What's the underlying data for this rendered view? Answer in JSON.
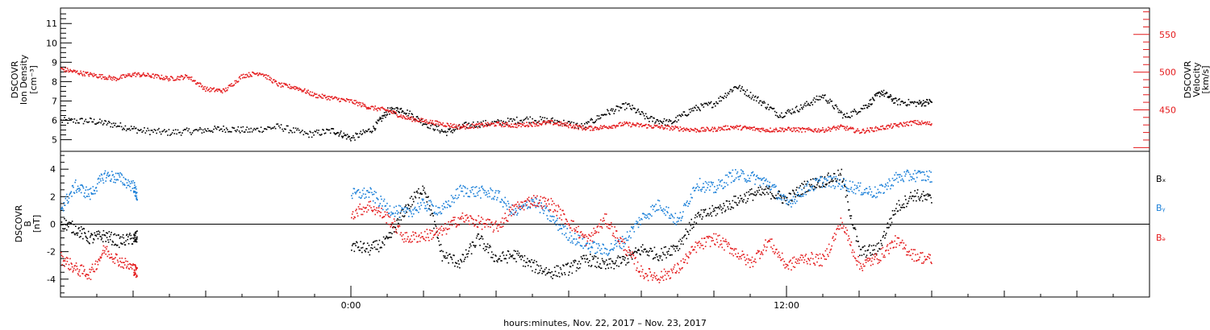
{
  "xlabel": "hours:minutes, Nov. 22, 2017 – Nov. 23, 2017",
  "colors": {
    "axis": "#000000",
    "velocity": "#e41a1c",
    "by": "#1a7fd8",
    "bz": "#e41a1c",
    "bx": "#000000"
  },
  "chart_data": [
    {
      "type": "scatter",
      "panel": "top",
      "xlim": [
        -8,
        22
      ],
      "x_ticks": [
        {
          "v": 0,
          "label": "0:00"
        },
        {
          "v": 12,
          "label": "12:00"
        }
      ],
      "left_axis": {
        "ylabel_lines": [
          "DSCOVR",
          "Ion Density",
          "[cm⁻³]"
        ],
        "ylim": [
          4.4,
          11.8
        ],
        "ticks": [
          5,
          6,
          7,
          8,
          9,
          10,
          11
        ]
      },
      "right_axis": {
        "ylabel_lines": [
          "DSCOVR",
          "Velocity",
          "[km/s]"
        ],
        "ylim": [
          395,
          585
        ],
        "ticks": [
          450,
          500,
          550
        ]
      },
      "series": [
        {
          "key": "density",
          "color": "black",
          "axis": "left",
          "x": [
            -8.0,
            -7.2,
            -6.5,
            -5.8,
            -5.0,
            -4.2,
            -3.5,
            -2.8,
            -2.0,
            -1.2,
            -0.5,
            0.0,
            0.6,
            1.0,
            1.4,
            2.0,
            2.6,
            3.2,
            4.0,
            4.8,
            5.6,
            6.4,
            7.0,
            7.6,
            8.2,
            8.8,
            9.4,
            10.0,
            10.6,
            11.2,
            11.8,
            12.4,
            13.0,
            13.6,
            14.2,
            14.6,
            15.0,
            15.6,
            16.0
          ],
          "y": [
            6.0,
            6.0,
            5.8,
            5.5,
            5.4,
            5.5,
            5.6,
            5.5,
            5.7,
            5.3,
            5.5,
            5.1,
            5.6,
            6.5,
            6.6,
            5.9,
            5.4,
            5.8,
            5.9,
            6.1,
            6.0,
            5.7,
            6.4,
            6.8,
            6.1,
            5.9,
            6.6,
            6.9,
            7.8,
            7.1,
            6.3,
            6.7,
            7.3,
            6.2,
            6.8,
            7.5,
            7.0,
            6.9,
            7.0
          ]
        },
        {
          "key": "velocity",
          "color": "red",
          "axis": "right",
          "x": [
            -8.0,
            -7.5,
            -7.0,
            -6.5,
            -6.0,
            -5.5,
            -5.0,
            -4.5,
            -4.0,
            -3.5,
            -3.0,
            -2.5,
            -2.0,
            -1.5,
            -1.0,
            -0.5,
            0.0,
            0.5,
            1.0,
            1.5,
            2.0,
            2.5,
            3.0,
            3.5,
            4.0,
            4.5,
            5.0,
            5.5,
            6.0,
            6.5,
            7.0,
            7.5,
            8.0,
            8.5,
            9.0,
            9.5,
            10.0,
            10.5,
            11.0,
            11.5,
            12.0,
            12.5,
            13.0,
            13.5,
            14.0,
            14.5,
            15.0,
            15.5,
            16.0
          ],
          "y": [
            505,
            500,
            496,
            492,
            498,
            496,
            492,
            495,
            478,
            476,
            496,
            500,
            484,
            480,
            470,
            466,
            462,
            454,
            450,
            440,
            436,
            432,
            428,
            430,
            432,
            430,
            432,
            434,
            430,
            426,
            428,
            432,
            430,
            428,
            426,
            424,
            425,
            428,
            426,
            424,
            425,
            424,
            424,
            428,
            422,
            426,
            430,
            434,
            432
          ]
        }
      ]
    },
    {
      "type": "scatter",
      "panel": "bottom",
      "xlim": [
        -8,
        22
      ],
      "ylabel_lines": [
        "DSCOVR",
        "B",
        "[nT]"
      ],
      "ylim": [
        -5.3,
        5.3
      ],
      "ticks": [
        -4,
        -2,
        0,
        2,
        4
      ],
      "legend": [
        "Bₓ",
        "Bᵧ",
        "Bₔ"
      ],
      "series": [
        {
          "key": "bx",
          "color": "black",
          "segments": [
            {
              "x": [
                -8.0,
                -7.6,
                -7.2,
                -6.8,
                -6.4,
                -6.0,
                -5.9
              ],
              "y": [
                0.2,
                -0.3,
                -1.0,
                -0.8,
                -1.2,
                -1.0,
                -0.9
              ]
            },
            {
              "x": [
                0.0,
                0.5,
                1.0,
                1.5,
                2.0,
                2.5,
                3.0,
                3.5,
                4.0,
                4.5,
                5.0,
                5.5,
                6.0,
                6.5,
                7.0,
                7.5,
                8.0,
                8.5,
                9.0,
                9.5,
                10.0,
                10.5,
                11.0,
                11.5,
                12.0,
                12.5,
                13.0,
                13.5,
                14.0,
                14.5,
                15.0,
                15.5,
                16.0
              ],
              "y": [
                -1.5,
                -1.8,
                -1.2,
                1.2,
                2.8,
                -2.2,
                -2.8,
                -1.0,
                -2.5,
                -2.2,
                -3.0,
                -3.5,
                -3.2,
                -2.5,
                -3.0,
                -2.6,
                -1.8,
                -2.2,
                -1.5,
                0.5,
                1.0,
                1.6,
                2.2,
                2.4,
                1.8,
                2.8,
                3.2,
                3.6,
                -2.0,
                -1.8,
                1.2,
                2.2,
                1.8
              ]
            }
          ]
        },
        {
          "key": "by",
          "color": "blue",
          "segments": [
            {
              "x": [
                -8.0,
                -7.6,
                -7.2,
                -6.8,
                -6.4,
                -6.0,
                -5.9
              ],
              "y": [
                1.2,
                2.8,
                2.2,
                3.6,
                3.4,
                2.8,
                2.0
              ]
            },
            {
              "x": [
                0.0,
                0.5,
                1.0,
                1.5,
                2.0,
                2.5,
                3.0,
                3.5,
                4.0,
                4.5,
                5.0,
                5.5,
                6.0,
                6.5,
                7.0,
                7.5,
                8.0,
                8.5,
                9.0,
                9.5,
                10.0,
                10.5,
                11.0,
                11.5,
                12.0,
                12.5,
                13.0,
                13.5,
                14.0,
                14.5,
                15.0,
                15.5,
                16.0
              ],
              "y": [
                2.2,
                2.3,
                1.2,
                0.8,
                1.5,
                1.0,
                2.5,
                2.4,
                2.2,
                0.8,
                1.8,
                0.5,
                -0.8,
                -1.5,
                -1.9,
                -1.2,
                0.5,
                1.5,
                0.2,
                3.0,
                2.6,
                3.6,
                3.5,
                3.0,
                1.5,
                2.6,
                3.2,
                3.0,
                2.6,
                2.3,
                3.4,
                3.6,
                3.5
              ]
            }
          ]
        },
        {
          "key": "bz",
          "color": "red",
          "segments": [
            {
              "x": [
                -8.0,
                -7.6,
                -7.2,
                -6.8,
                -6.4,
                -6.0,
                -5.9
              ],
              "y": [
                -2.4,
                -3.2,
                -3.6,
                -1.8,
                -2.6,
                -3.2,
                -3.5
              ]
            },
            {
              "x": [
                0.0,
                0.5,
                1.0,
                1.5,
                2.0,
                2.5,
                3.0,
                3.5,
                4.0,
                4.5,
                5.0,
                5.5,
                6.0,
                6.5,
                7.0,
                7.5,
                8.0,
                8.5,
                9.0,
                9.5,
                10.0,
                10.5,
                11.0,
                11.5,
                12.0,
                12.5,
                13.0,
                13.5,
                14.0,
                14.5,
                15.0,
                15.5,
                16.0
              ],
              "y": [
                0.8,
                1.4,
                0.5,
                -1.0,
                -0.8,
                -0.5,
                0.5,
                0.2,
                -0.2,
                1.2,
                1.8,
                1.5,
                0.2,
                -1.2,
                0.4,
                -1.5,
                -3.5,
                -3.8,
                -3.2,
                -1.6,
                -1.0,
                -1.8,
                -2.8,
                -1.2,
                -3.0,
                -2.4,
                -2.6,
                0.2,
                -3.0,
                -2.4,
                -1.2,
                -2.2,
                -2.6
              ]
            }
          ]
        }
      ]
    }
  ]
}
